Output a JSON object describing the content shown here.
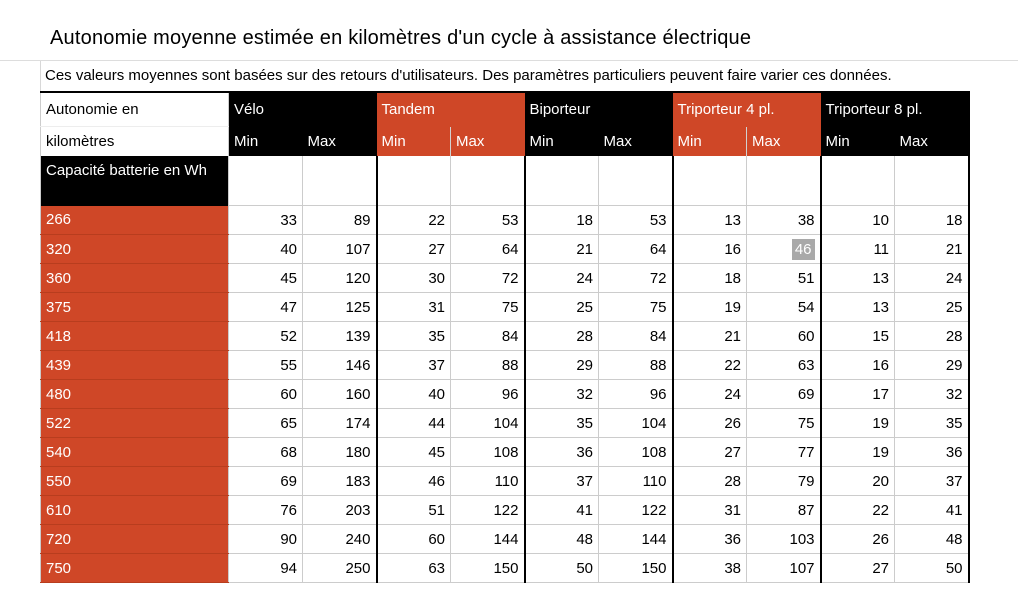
{
  "page": {
    "title": "Autonomie moyenne estimée en kilomètres d'un cycle à assistance électrique",
    "subtitle": "Ces valeurs moyennes sont basées sur des retours d'utilisateurs. Des paramètres particuliers peuvent faire varier ces données."
  },
  "colors": {
    "accent_orange": "#cf4727",
    "header_black": "#000000",
    "highlight_gray": "#a9a9a9",
    "grid_line": "#cccccc"
  },
  "chart_data": {
    "type": "table",
    "title": "Autonomie moyenne estimée en kilomètres d'un cycle à assistance électrique",
    "caption": "Ces valeurs moyennes sont basées sur des retours d'utilisateurs. Des paramètres particuliers peuvent faire varier ces données.",
    "corner": {
      "line1": "Autonomie en",
      "line2": "kilomètres"
    },
    "row_header": "Capacité batterie en Wh",
    "column_groups": [
      {
        "label": "Vélo",
        "style": "hblack"
      },
      {
        "label": "Tandem",
        "style": "horange"
      },
      {
        "label": "Biporteur",
        "style": "hblack"
      },
      {
        "label": "Triporteur 4 pl.",
        "style": "horange"
      },
      {
        "label": "Triporteur 8 pl.",
        "style": "hblack"
      }
    ],
    "sub_columns": [
      "Min",
      "Max"
    ],
    "rows": [
      {
        "capacity": "266",
        "values": [
          33,
          89,
          22,
          53,
          18,
          53,
          13,
          38,
          10,
          18
        ]
      },
      {
        "capacity": "320",
        "values": [
          40,
          107,
          27,
          64,
          21,
          64,
          16,
          46,
          11,
          21
        ],
        "highlight_col": 7
      },
      {
        "capacity": "360",
        "values": [
          45,
          120,
          30,
          72,
          24,
          72,
          18,
          51,
          13,
          24
        ]
      },
      {
        "capacity": "375",
        "values": [
          47,
          125,
          31,
          75,
          25,
          75,
          19,
          54,
          13,
          25
        ]
      },
      {
        "capacity": "418",
        "values": [
          52,
          139,
          35,
          84,
          28,
          84,
          21,
          60,
          15,
          28
        ]
      },
      {
        "capacity": "439",
        "values": [
          55,
          146,
          37,
          88,
          29,
          88,
          22,
          63,
          16,
          29
        ]
      },
      {
        "capacity": "480",
        "values": [
          60,
          160,
          40,
          96,
          32,
          96,
          24,
          69,
          17,
          32
        ]
      },
      {
        "capacity": "522",
        "values": [
          65,
          174,
          44,
          104,
          35,
          104,
          26,
          75,
          19,
          35
        ]
      },
      {
        "capacity": "540",
        "values": [
          68,
          180,
          45,
          108,
          36,
          108,
          27,
          77,
          19,
          36
        ]
      },
      {
        "capacity": "550",
        "values": [
          69,
          183,
          46,
          110,
          37,
          110,
          28,
          79,
          20,
          37
        ]
      },
      {
        "capacity": "610",
        "values": [
          76,
          203,
          51,
          122,
          41,
          122,
          31,
          87,
          22,
          41
        ]
      },
      {
        "capacity": "720",
        "values": [
          90,
          240,
          60,
          144,
          48,
          144,
          36,
          103,
          26,
          48
        ]
      },
      {
        "capacity": "750",
        "values": [
          94,
          250,
          63,
          150,
          50,
          150,
          38,
          107,
          27,
          50
        ]
      }
    ]
  }
}
